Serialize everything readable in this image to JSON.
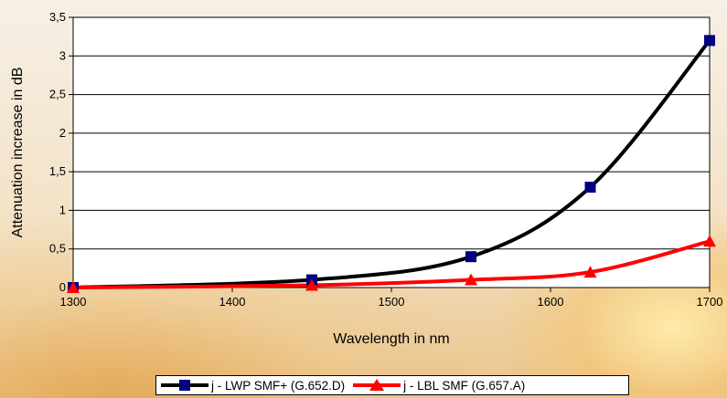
{
  "chart_data": {
    "type": "line",
    "title": "",
    "xlabel": "Wavelength in nm",
    "ylabel": "Attenuation increase in dB",
    "xlim": [
      1300,
      1700
    ],
    "ylim": [
      0,
      3.5
    ],
    "x_ticks": [
      "1300",
      "1400",
      "1500",
      "1600",
      "1700"
    ],
    "y_ticks": [
      "0",
      "0,5",
      "1",
      "1,5",
      "2",
      "2,5",
      "3",
      "3,5"
    ],
    "grid": "horizontal",
    "legend_position": "bottom",
    "series": [
      {
        "name": "j - LWP SMF+ (G.652.D)",
        "color": "#000000",
        "marker": "square",
        "marker_color": "#000080",
        "x": [
          1300,
          1450,
          1550,
          1625,
          1700
        ],
        "y": [
          0,
          0.1,
          0.4,
          1.3,
          3.2
        ]
      },
      {
        "name": "j - LBL SMF (G.657.A)",
        "color": "#ff0000",
        "marker": "triangle",
        "marker_color": "#ff0000",
        "x": [
          1300,
          1450,
          1550,
          1625,
          1700
        ],
        "y": [
          0,
          0.03,
          0.1,
          0.2,
          0.6
        ]
      }
    ]
  }
}
